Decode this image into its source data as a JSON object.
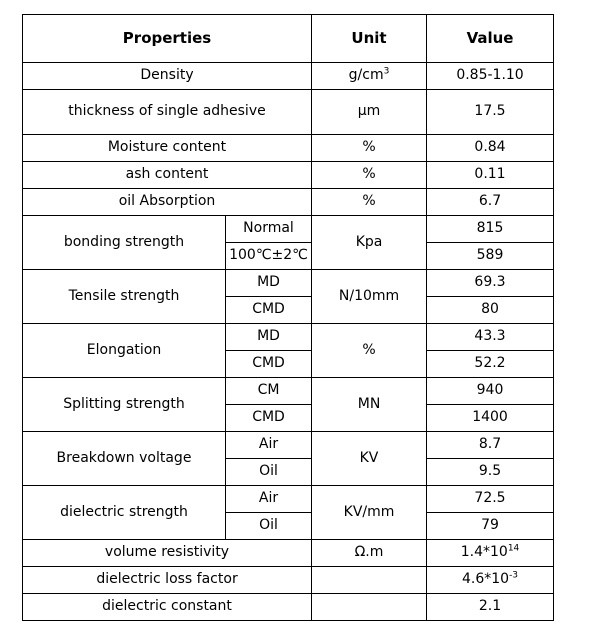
{
  "table": {
    "headers": {
      "properties": "Properties",
      "unit": "Unit",
      "value": "Value"
    },
    "rows": [
      {
        "property": "Density",
        "unit": "g/cm",
        "unit_sup": "3",
        "value": "0.85-1.10"
      },
      {
        "property": "thickness of single adhesive",
        "unit": "μm",
        "value": "17.5"
      },
      {
        "property": "Moisture content",
        "unit": "%",
        "value": "0.84"
      },
      {
        "property": "ash content",
        "unit": "%",
        "value": "0.11"
      },
      {
        "property": "oil Absorption",
        "unit": "%",
        "value": "6.7"
      }
    ],
    "groups": [
      {
        "property": "bonding strength",
        "unit": "Kpa",
        "subs": [
          {
            "label": "Normal",
            "value": "815"
          },
          {
            "label": "100℃±2℃",
            "value": "589"
          }
        ]
      },
      {
        "property": "Tensile strength",
        "unit": "N/10mm",
        "subs": [
          {
            "label": "MD",
            "value": "69.3"
          },
          {
            "label": "CMD",
            "value": "80"
          }
        ]
      },
      {
        "property": "Elongation",
        "unit": "%",
        "subs": [
          {
            "label": "MD",
            "value": "43.3"
          },
          {
            "label": "CMD",
            "value": "52.2"
          }
        ]
      },
      {
        "property": "Splitting strength",
        "unit": "MN",
        "subs": [
          {
            "label": "CM",
            "value": "940"
          },
          {
            "label": "CMD",
            "value": "1400"
          }
        ]
      },
      {
        "property": "Breakdown voltage",
        "unit": "KV",
        "subs": [
          {
            "label": "Air",
            "value": "8.7"
          },
          {
            "label": "Oil",
            "value": "9.5"
          }
        ]
      },
      {
        "property": "dielectric strength",
        "unit": "KV/mm",
        "subs": [
          {
            "label": "Air",
            "value": "72.5"
          },
          {
            "label": "Oil",
            "value": "79"
          }
        ]
      }
    ],
    "tail": [
      {
        "property": "volume resistivity",
        "unit": "Ω.m",
        "value": "1.4*10",
        "value_sup": "14"
      },
      {
        "property": "dielectric loss factor",
        "unit": "",
        "value": "4.6*10",
        "value_sup": "-3"
      },
      {
        "property": "dielectric constant",
        "unit": "",
        "value": "2.1"
      }
    ]
  }
}
